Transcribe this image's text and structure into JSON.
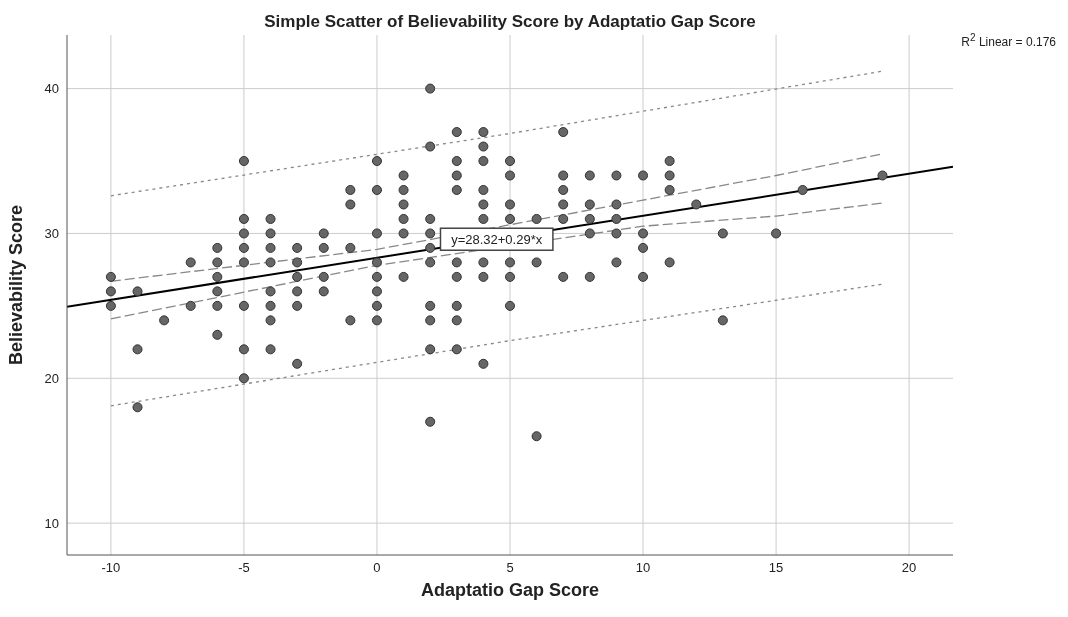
{
  "chart_data": {
    "type": "scatter",
    "title": "Simple Scatter of Believability Score by Adaptatio Gap Score",
    "xlabel": "Adaptatio Gap Score",
    "ylabel": "Believability Score",
    "xlim": [
      -11.65,
      21.65
    ],
    "xticks": [
      -10,
      -5,
      0,
      5,
      10,
      15,
      20
    ],
    "ylim": [
      7.8,
      43.7
    ],
    "yticks": [
      10,
      20,
      30,
      40
    ],
    "grid": true,
    "annotations": [
      "R$^{2}$ Linear = 0.176",
      {
        "text": "y=28.32+0.29*x",
        "x": 4.5,
        "y": 29.6
      }
    ],
    "series": [
      {
        "marker": "circle",
        "color": "#666666",
        "x": [
          -10,
          -10,
          -10,
          -9,
          -9,
          -9,
          -8,
          -7,
          -7,
          -6,
          -6,
          -6,
          -6,
          -6,
          -6,
          -5,
          -5,
          -5,
          -5,
          -5,
          -5,
          -5,
          -5,
          -4,
          -4,
          -4,
          -4,
          -4,
          -4,
          -4,
          -4,
          -3,
          -3,
          -3,
          -3,
          -3,
          -3,
          -2,
          -2,
          -2,
          -2,
          -1,
          -1,
          -1,
          -1,
          0,
          0,
          0,
          0,
          0,
          0,
          0,
          0,
          1,
          1,
          1,
          1,
          1,
          1,
          2,
          2,
          2,
          2,
          2,
          2,
          2,
          2,
          2,
          2,
          3,
          3,
          3,
          3,
          3,
          3,
          3,
          3,
          3,
          4,
          4,
          4,
          4,
          4,
          4,
          4,
          4,
          4,
          5,
          5,
          5,
          5,
          5,
          5,
          5,
          6,
          6,
          6,
          7,
          7,
          7,
          7,
          7,
          7,
          8,
          8,
          8,
          8,
          8,
          9,
          9,
          9,
          9,
          9,
          10,
          10,
          10,
          10,
          11,
          11,
          11,
          11,
          12,
          13,
          13,
          15,
          16,
          19
        ],
        "values": [
          27,
          26,
          25,
          26,
          22,
          18,
          24,
          28,
          25,
          29,
          28,
          27,
          26,
          25,
          23,
          35,
          31,
          30,
          29,
          28,
          25,
          22,
          20,
          31,
          30,
          29,
          28,
          26,
          25,
          24,
          22,
          29,
          28,
          27,
          26,
          25,
          21,
          30,
          29,
          27,
          26,
          33,
          32,
          29,
          24,
          35,
          33,
          30,
          28,
          27,
          26,
          25,
          24,
          34,
          33,
          32,
          31,
          30,
          27,
          40,
          36,
          31,
          30,
          29,
          28,
          25,
          24,
          22,
          17,
          37,
          35,
          34,
          33,
          28,
          27,
          25,
          24,
          22,
          37,
          36,
          35,
          33,
          32,
          31,
          28,
          27,
          21,
          35,
          34,
          32,
          31,
          28,
          27,
          25,
          31,
          28,
          16,
          37,
          34,
          33,
          32,
          31,
          27,
          34,
          32,
          31,
          30,
          27,
          34,
          32,
          31,
          30,
          28,
          34,
          30,
          29,
          27,
          35,
          34,
          33,
          28,
          32,
          30,
          24,
          30,
          33,
          34
        ]
      },
      {
        "type": "line",
        "color": "#000000",
        "line_style": "solid",
        "x": [
          -11.65,
          21.65
        ],
        "values": [
          24.94,
          34.6
        ]
      },
      {
        "type": "line",
        "color": "#888888",
        "line_style": "dashed",
        "x": [
          -10,
          0,
          10,
          15,
          19
        ],
        "values": [
          26.7,
          28.9,
          32.3,
          34.0,
          35.5
        ]
      },
      {
        "type": "line",
        "color": "#888888",
        "line_style": "dashed",
        "x": [
          -10,
          0,
          10,
          15,
          19
        ],
        "values": [
          24.1,
          27.8,
          30.5,
          31.2,
          32.1
        ]
      },
      {
        "type": "line",
        "color": "#888888",
        "line_style": "dotted",
        "x": [
          -10,
          5,
          19
        ],
        "values": [
          32.6,
          36.9,
          41.2
        ]
      },
      {
        "type": "line",
        "color": "#888888",
        "line_style": "dotted",
        "x": [
          -10,
          5,
          19
        ],
        "values": [
          18.1,
          22.6,
          26.5
        ]
      }
    ]
  }
}
